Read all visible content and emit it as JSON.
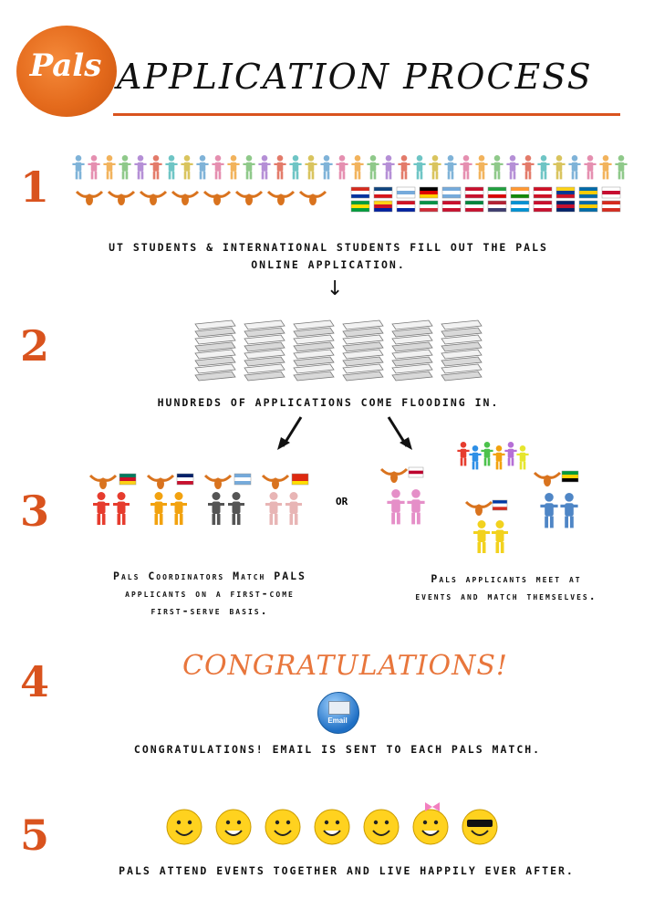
{
  "header": {
    "logo_text": "Pals",
    "title": "APPLICATION PROCESS"
  },
  "steps": [
    {
      "number": "1",
      "caption_line1": "UT STUDENTS & INTERNATIONAL STUDENTS FILL OUT THE PALS",
      "caption_line2": "ONLINE APPLICATION."
    },
    {
      "number": "2",
      "caption": "HUNDREDS OF APPLICATIONS COME FLOODING IN."
    },
    {
      "number": "3",
      "or_text": "OR",
      "left_caption_line1": "Pals Coordinators Match PALS",
      "left_caption_line2": "applicants on a first-come",
      "left_caption_line3": "first-serve basis.",
      "right_caption_line1": "Pals applicants meet at",
      "right_caption_line2": "events and match themselves."
    },
    {
      "number": "4",
      "banner": "CONGRATULATIONS!",
      "email_label": "Email",
      "caption": "CONGRATULATIONS! EMAIL IS SENT TO EACH PALS MATCH."
    },
    {
      "number": "5",
      "caption": "PALS ATTEND EVENTS TOGETHER AND LIVE HAPPILY EVER AFTER."
    }
  ],
  "colors": {
    "accent": "#d9531e",
    "longhorn": "#d9731e",
    "congrats": "#e8763c"
  }
}
